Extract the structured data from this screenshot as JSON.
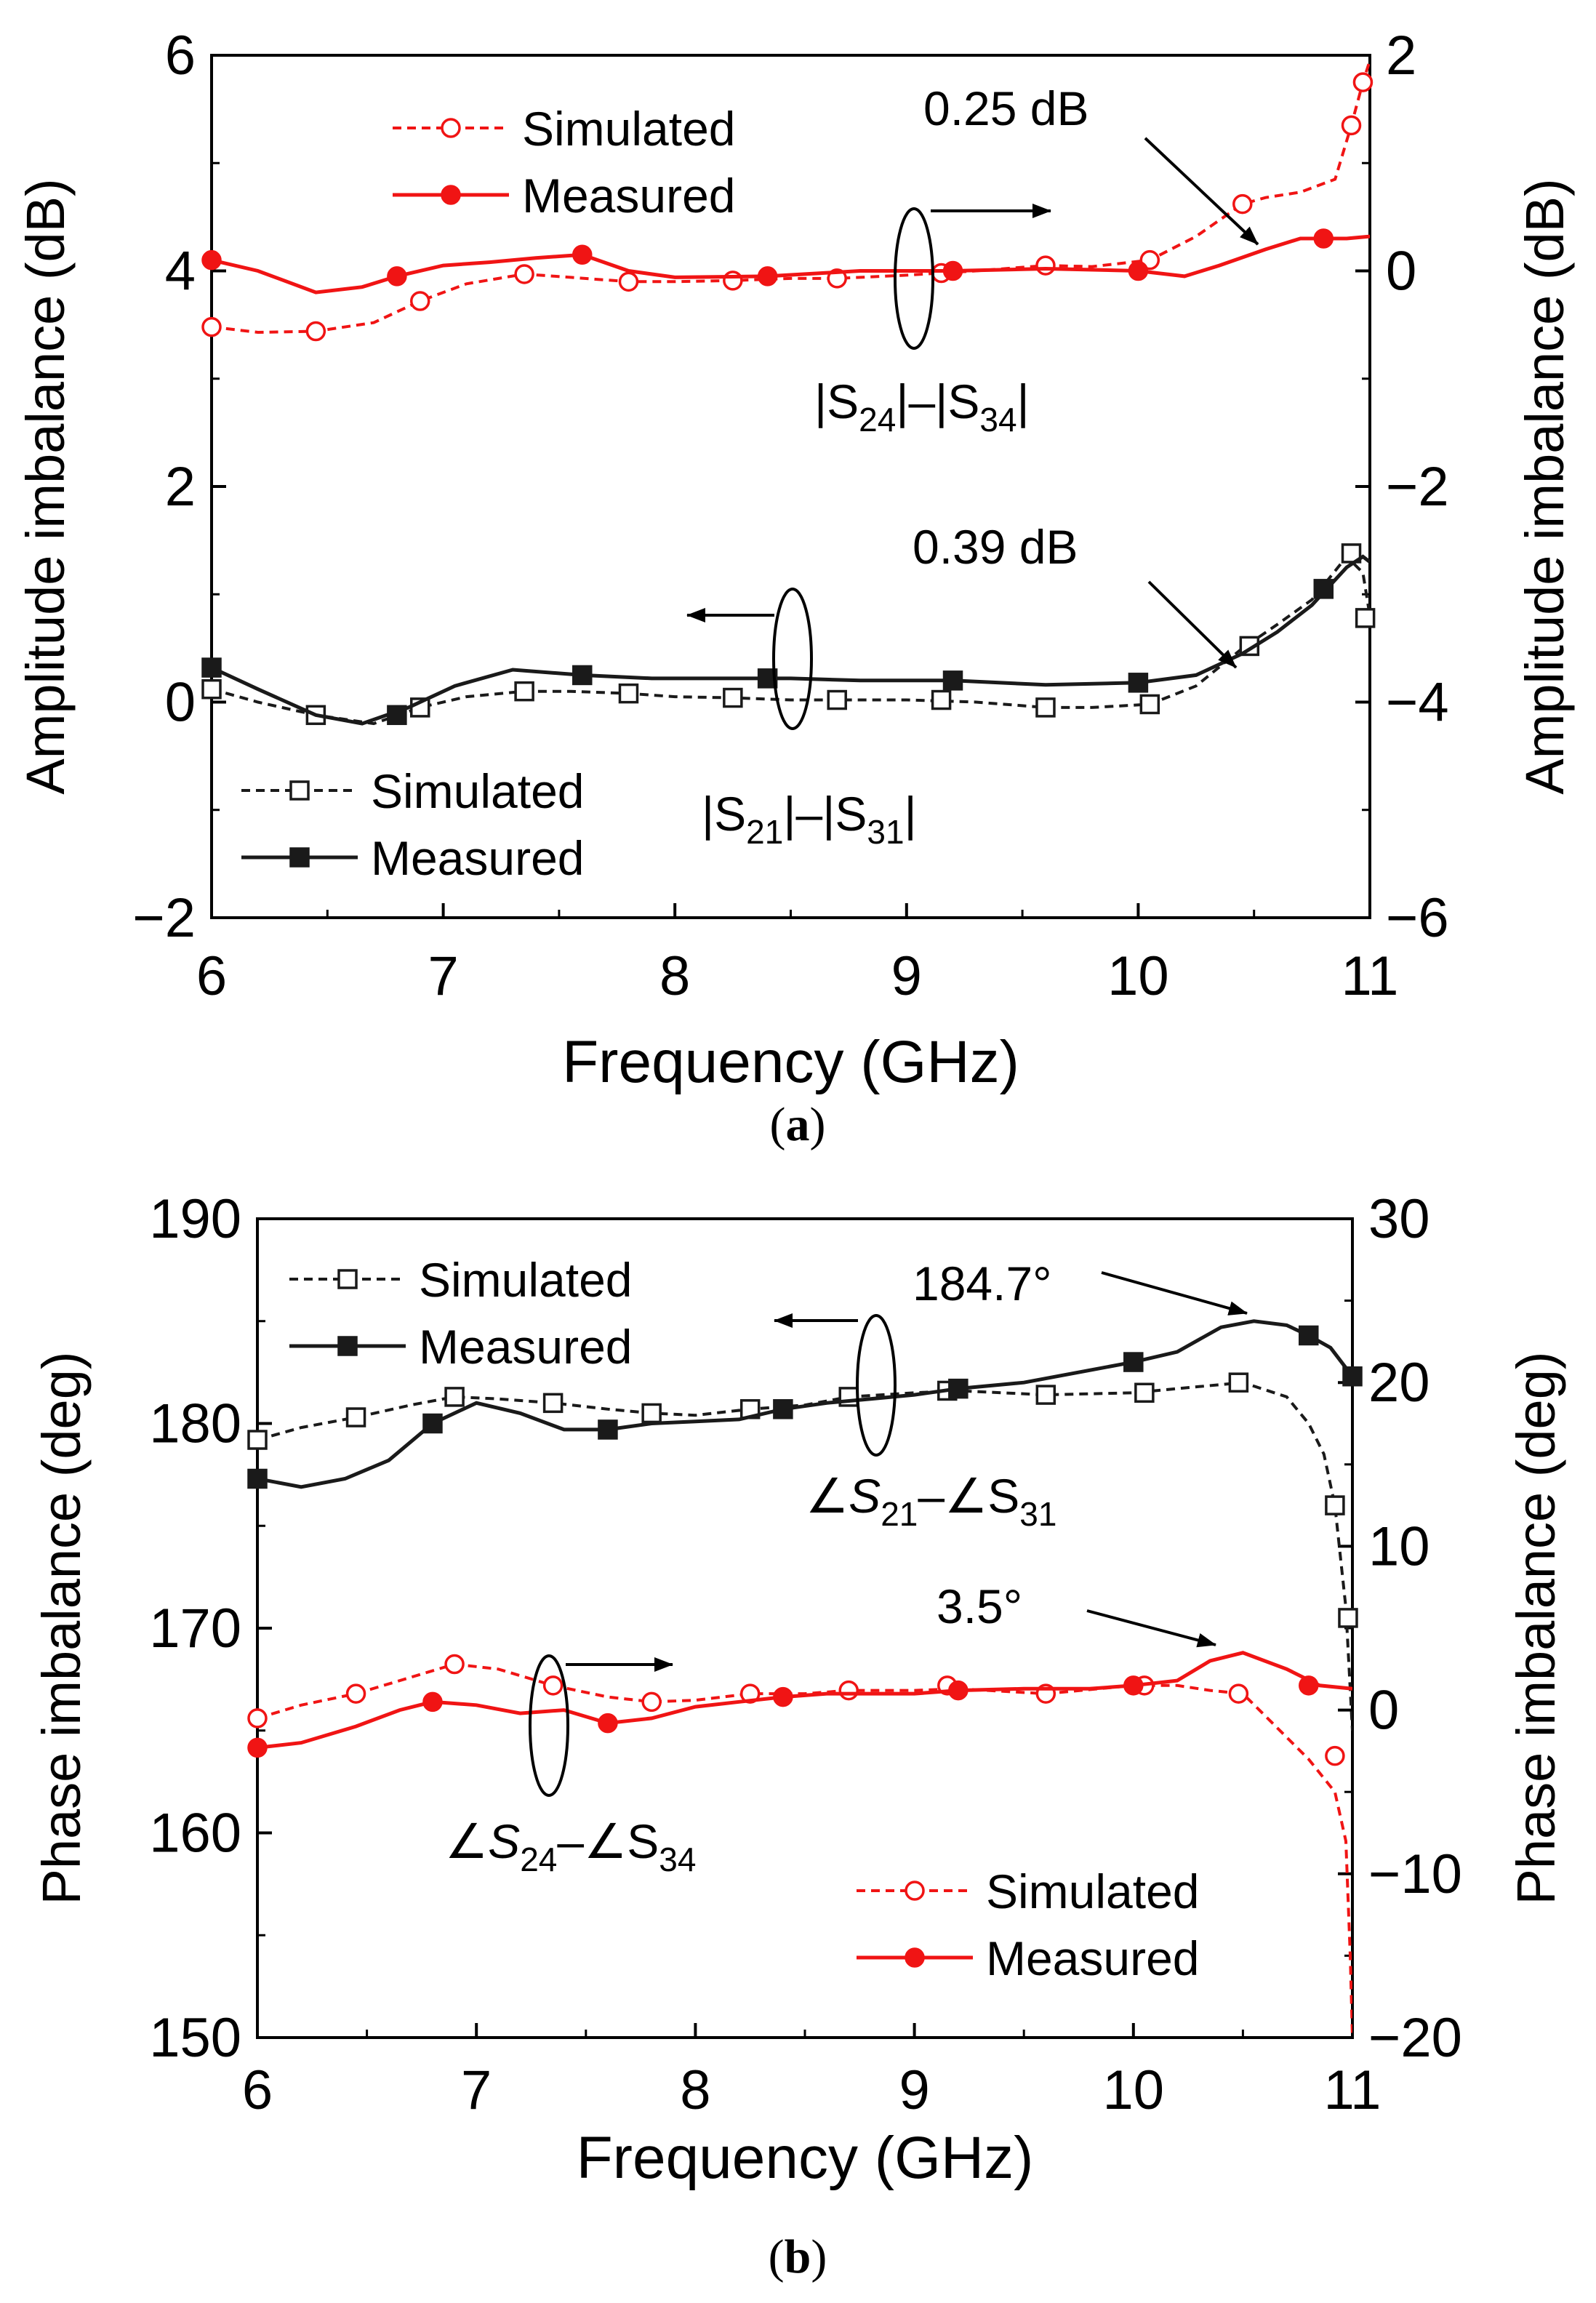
{
  "colors": {
    "black": "#1a1a1a",
    "red": "#f01414",
    "axis": "#000000"
  },
  "chart_data": [
    {
      "panel_label": "a",
      "type": "line",
      "xlabel": "Frequency (GHz)",
      "ylabel_left": "Amplitude imbalance (dB)",
      "ylabel_right": "Amplitude imbalance (dB)",
      "xlim": [
        6,
        11
      ],
      "ylim_left": [
        -2,
        6
      ],
      "ylim_right": [
        -6,
        2
      ],
      "xticks": [
        "6",
        "7",
        "8",
        "9",
        "10",
        "11"
      ],
      "yticks_left": [
        "−2",
        "0",
        "2",
        "4",
        "6"
      ],
      "yticks_right": [
        "−6",
        "−4",
        "−2",
        "0",
        "2"
      ],
      "groups": [
        {
          "label_parts": [
            "|S",
            "24",
            "|–|S",
            "34",
            "|"
          ],
          "axis": "right",
          "color": "red",
          "annotation": "0.25 dB",
          "series": [
            {
              "name": "Simulated",
              "style": "dashed",
              "marker": "open-circle",
              "x": [
                6.0,
                6.2,
                6.45,
                6.7,
                6.9,
                7.1,
                7.35,
                7.55,
                7.8,
                8.0,
                8.25,
                8.5,
                8.7,
                9.0,
                9.3,
                9.6,
                9.8,
                10.05,
                10.25,
                10.45,
                10.55,
                10.7,
                10.85,
                10.92,
                10.97,
                11.0
              ],
              "y": [
                -0.52,
                -0.57,
                -0.56,
                -0.48,
                -0.28,
                -0.12,
                -0.03,
                -0.06,
                -0.1,
                -0.1,
                -0.09,
                -0.07,
                -0.07,
                -0.04,
                0.0,
                0.05,
                0.04,
                0.1,
                0.32,
                0.62,
                0.68,
                0.73,
                0.85,
                1.35,
                1.75,
                1.95
              ],
              "marker_x": [
                6.0,
                6.45,
                6.9,
                7.35,
                7.8,
                8.25,
                8.7,
                9.15,
                9.6,
                10.05,
                10.45,
                10.92,
                10.97
              ],
              "marker_y": [
                -0.52,
                -0.56,
                -0.28,
                -0.03,
                -0.1,
                -0.09,
                -0.07,
                -0.02,
                0.05,
                0.1,
                0.62,
                1.35,
                1.75
              ]
            },
            {
              "name": "Measured",
              "style": "solid",
              "marker": "filled-circle",
              "x": [
                6.0,
                6.2,
                6.45,
                6.65,
                6.8,
                7.0,
                7.2,
                7.4,
                7.6,
                7.8,
                8.0,
                8.4,
                8.8,
                9.2,
                9.6,
                10.0,
                10.2,
                10.35,
                10.55,
                10.7,
                10.9,
                11.0
              ],
              "y": [
                0.1,
                0.0,
                -0.2,
                -0.15,
                -0.05,
                0.05,
                0.08,
                0.12,
                0.15,
                0.0,
                -0.06,
                -0.05,
                0.0,
                0.0,
                0.02,
                0.0,
                -0.05,
                0.05,
                0.2,
                0.3,
                0.3,
                0.32
              ],
              "marker_x": [
                6.0,
                6.8,
                7.6,
                8.4,
                9.2,
                10.0,
                10.8
              ],
              "marker_y": [
                0.1,
                -0.05,
                0.15,
                -0.05,
                0.0,
                0.0,
                0.3
              ]
            }
          ]
        },
        {
          "label_parts": [
            "|S",
            "21",
            "|–|S",
            "31",
            "|"
          ],
          "axis": "left",
          "color": "black",
          "annotation": "0.39 dB",
          "series": [
            {
              "name": "Simulated",
              "style": "dashed",
              "marker": "open-square",
              "x": [
                6.0,
                6.2,
                6.45,
                6.7,
                6.9,
                7.1,
                7.35,
                7.55,
                7.8,
                8.0,
                8.25,
                8.5,
                8.7,
                9.0,
                9.3,
                9.6,
                9.8,
                10.05,
                10.25,
                10.45,
                10.6,
                10.75,
                10.9,
                10.97,
                11.0
              ],
              "y": [
                0.12,
                0.0,
                -0.12,
                -0.2,
                -0.05,
                0.05,
                0.1,
                0.1,
                0.08,
                0.05,
                0.04,
                0.02,
                0.02,
                0.02,
                0.0,
                -0.05,
                -0.05,
                -0.02,
                0.15,
                0.5,
                0.72,
                0.95,
                1.35,
                1.2,
                0.8
              ],
              "marker_x": [
                6.0,
                6.45,
                6.9,
                7.35,
                7.8,
                8.25,
                8.7,
                9.15,
                9.6,
                10.05,
                10.48,
                10.92,
                10.98
              ],
              "marker_y": [
                0.12,
                -0.12,
                -0.05,
                0.1,
                0.08,
                0.04,
                0.02,
                0.02,
                -0.05,
                -0.02,
                0.52,
                1.38,
                0.78
              ]
            },
            {
              "name": "Measured",
              "style": "solid",
              "marker": "filled-square",
              "x": [
                6.0,
                6.2,
                6.45,
                6.65,
                6.85,
                7.05,
                7.3,
                7.6,
                7.9,
                8.2,
                8.5,
                8.8,
                9.2,
                9.6,
                10.0,
                10.25,
                10.45,
                10.6,
                10.75,
                10.9,
                10.97,
                11.0
              ],
              "y": [
                0.32,
                0.12,
                -0.12,
                -0.2,
                -0.05,
                0.15,
                0.3,
                0.25,
                0.22,
                0.22,
                0.22,
                0.2,
                0.2,
                0.16,
                0.18,
                0.25,
                0.45,
                0.65,
                0.9,
                1.25,
                1.35,
                1.3
              ],
              "marker_x": [
                6.0,
                6.8,
                7.6,
                8.4,
                9.2,
                10.0,
                10.8
              ],
              "marker_y": [
                0.32,
                -0.12,
                0.25,
                0.22,
                0.2,
                0.18,
                1.05
              ]
            }
          ]
        }
      ]
    },
    {
      "panel_label": "b",
      "type": "line",
      "xlabel": "Frequency (GHz)",
      "ylabel_left": "Phase imbalance (deg)",
      "ylabel_right": "Phase imbalance (deg)",
      "xlim": [
        6,
        11
      ],
      "ylim_left": [
        150,
        190
      ],
      "ylim_right": [
        -20,
        30
      ],
      "xticks": [
        "6",
        "7",
        "8",
        "9",
        "10",
        "11"
      ],
      "yticks_left": [
        "150",
        "160",
        "170",
        "180",
        "190"
      ],
      "yticks_right": [
        "−20",
        "−10",
        "0",
        "10",
        "20",
        "30"
      ],
      "groups": [
        {
          "label_parts": [
            "∠",
            "S",
            "21",
            "–∠S",
            "31"
          ],
          "axis": "left",
          "color": "black",
          "annotation": "184.7°",
          "series": [
            {
              "name": "Simulated",
              "style": "dashed",
              "marker": "open-square",
              "x": [
                6.0,
                6.2,
                6.45,
                6.7,
                6.9,
                7.1,
                7.35,
                7.6,
                7.8,
                8.0,
                8.25,
                8.5,
                8.7,
                9.0,
                9.2,
                9.6,
                10.0,
                10.3,
                10.5,
                10.7,
                10.8,
                10.87,
                10.92,
                10.97,
                11.0
              ],
              "y": [
                179.2,
                179.8,
                180.3,
                180.9,
                181.3,
                181.2,
                181.0,
                180.7,
                180.5,
                180.4,
                180.7,
                180.9,
                181.3,
                181.5,
                181.6,
                181.4,
                181.5,
                181.8,
                182.0,
                181.3,
                180.0,
                178.5,
                176.0,
                171.0,
                165.0
              ],
              "marker_x": [
                6.0,
                6.45,
                6.9,
                7.35,
                7.8,
                8.25,
                8.7,
                9.15,
                9.6,
                10.05,
                10.48,
                10.92,
                10.98
              ],
              "marker_y": [
                179.2,
                180.3,
                181.3,
                181.0,
                180.5,
                180.7,
                181.3,
                181.6,
                181.4,
                181.5,
                182.0,
                176.0,
                170.5
              ]
            },
            {
              "name": "Measured",
              "style": "solid",
              "marker": "filled-square",
              "x": [
                6.0,
                6.2,
                6.4,
                6.6,
                6.8,
                7.0,
                7.2,
                7.4,
                7.6,
                7.8,
                8.0,
                8.2,
                8.4,
                8.6,
                8.8,
                9.0,
                9.2,
                9.5,
                9.8,
                10.0,
                10.2,
                10.4,
                10.55,
                10.7,
                10.8,
                10.9,
                11.0
              ],
              "y": [
                177.3,
                176.9,
                177.3,
                178.2,
                180.0,
                181.0,
                180.5,
                179.7,
                179.7,
                180.0,
                180.1,
                180.2,
                180.7,
                181.0,
                181.2,
                181.4,
                181.7,
                182.0,
                182.6,
                183.0,
                183.5,
                184.7,
                185.0,
                184.8,
                184.3,
                183.7,
                182.3
              ],
              "marker_x": [
                6.0,
                6.8,
                7.6,
                8.4,
                9.2,
                10.0,
                10.8,
                11.0
              ],
              "marker_y": [
                177.3,
                180.0,
                179.7,
                180.7,
                181.7,
                183.0,
                184.3,
                182.3
              ]
            }
          ]
        },
        {
          "label_parts": [
            "∠",
            "S",
            "24",
            "–∠S",
            "34"
          ],
          "axis": "right",
          "color": "red",
          "annotation": "3.5°",
          "series": [
            {
              "name": "Simulated",
              "style": "dashed",
              "marker": "open-circle",
              "x": [
                6.0,
                6.2,
                6.45,
                6.7,
                6.9,
                7.1,
                7.35,
                7.6,
                7.8,
                8.0,
                8.25,
                8.5,
                8.7,
                9.0,
                9.2,
                9.6,
                10.0,
                10.2,
                10.35,
                10.5,
                10.65,
                10.8,
                10.92,
                10.97,
                10.99,
                11.0
              ],
              "y": [
                -0.5,
                0.3,
                1.0,
                2.0,
                2.8,
                2.5,
                1.5,
                0.8,
                0.5,
                0.6,
                1.0,
                1.0,
                1.2,
                1.2,
                1.3,
                1.0,
                1.5,
                1.5,
                1.2,
                1.0,
                -1.0,
                -3.0,
                -5.0,
                -8.0,
                -15.0,
                -20.0
              ],
              "marker_x": [
                6.0,
                6.45,
                6.9,
                7.35,
                7.8,
                8.25,
                8.7,
                9.15,
                9.6,
                10.05,
                10.48,
                10.92
              ],
              "marker_y": [
                -0.5,
                1.0,
                2.8,
                1.5,
                0.5,
                1.0,
                1.2,
                1.5,
                1.0,
                1.5,
                1.0,
                -2.8
              ]
            },
            {
              "name": "Measured",
              "style": "solid",
              "marker": "filled-circle",
              "x": [
                6.0,
                6.2,
                6.45,
                6.65,
                6.8,
                7.0,
                7.2,
                7.4,
                7.6,
                7.8,
                8.0,
                8.2,
                8.4,
                8.6,
                8.8,
                9.0,
                9.2,
                9.5,
                9.8,
                10.0,
                10.2,
                10.35,
                10.5,
                10.7,
                10.85,
                11.0
              ],
              "y": [
                -2.3,
                -2.0,
                -1.0,
                0.0,
                0.5,
                0.3,
                -0.2,
                0.0,
                -0.8,
                -0.5,
                0.2,
                0.5,
                0.8,
                1.0,
                1.0,
                1.0,
                1.2,
                1.3,
                1.3,
                1.5,
                1.8,
                3.0,
                3.5,
                2.5,
                1.5,
                1.3
              ],
              "marker_x": [
                6.0,
                6.8,
                7.6,
                8.4,
                9.2,
                10.0,
                10.8
              ],
              "marker_y": [
                -2.3,
                0.5,
                -0.8,
                0.8,
                1.2,
                1.5,
                1.5
              ]
            }
          ]
        }
      ]
    }
  ]
}
